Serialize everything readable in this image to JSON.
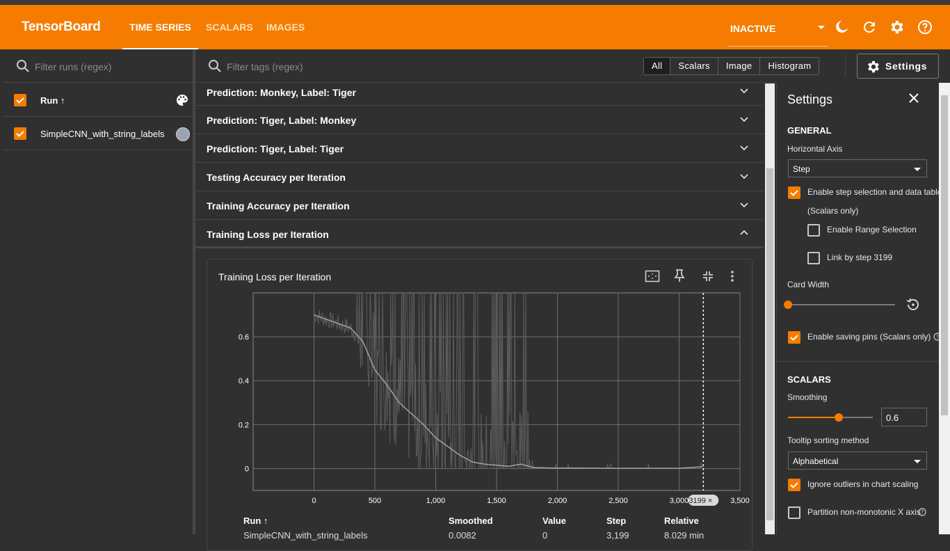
{
  "app": {
    "title": "TensorBoard"
  },
  "nav": {
    "tabs": [
      "TIME SERIES",
      "SCALARS",
      "IMAGES"
    ],
    "status": "INACTIVE"
  },
  "left": {
    "filter_placeholder": "Filter runs (regex)",
    "header_label": "Run ↑",
    "run_name": "SimpleCNN_with_string_labels"
  },
  "main": {
    "filter_placeholder": "Filter tags (regex)",
    "type_filters": [
      "All",
      "Scalars",
      "Image",
      "Histogram"
    ],
    "settings_label": "Settings",
    "groups": [
      "Prediction: Monkey, Label: Tiger",
      "Prediction: Tiger, Label: Monkey",
      "Prediction: Tiger, Label: Tiger",
      "Testing Accuracy per Iteration",
      "Training Accuracy per Iteration",
      "Training Loss per Iteration"
    ],
    "card_title": "Training Loss per Iteration",
    "step_marker": "3199",
    "table_headers": [
      "Run ↑",
      "Smoothed",
      "Value",
      "Step",
      "Relative"
    ],
    "table_row": [
      "SimpleCNN_with_string_labels",
      "0.0082",
      "0",
      "3,199",
      "8.029 min"
    ]
  },
  "chart_data": {
    "type": "line",
    "title": "Training Loss per Iteration",
    "xlabel": "Step",
    "ylabel": "",
    "xlim": [
      -500,
      3500
    ],
    "ylim": [
      -0.1,
      0.8
    ],
    "x_ticks": [
      "0",
      "500",
      "1,000",
      "1,500",
      "2,000",
      "2,500",
      "3,000",
      "3,500"
    ],
    "y_ticks": [
      "0",
      "0.2",
      "0.4",
      "0.6"
    ],
    "series": [
      {
        "name": "SimpleCNN_with_string_labels",
        "x": [
          0,
          100,
          200,
          300,
          400,
          500,
          600,
          700,
          800,
          900,
          1000,
          1100,
          1200,
          1300,
          1400,
          1500,
          1600,
          1700,
          1800,
          1900,
          2000,
          2200,
          2500,
          2800,
          3000,
          3199
        ],
        "values": [
          0.7,
          0.68,
          0.66,
          0.64,
          0.58,
          0.45,
          0.38,
          0.3,
          0.25,
          0.2,
          0.14,
          0.1,
          0.06,
          0.03,
          0.02,
          0.015,
          0.01,
          0.02,
          0.005,
          0.003,
          0.002,
          0.002,
          0.001,
          0.001,
          0.001,
          0.0082
        ]
      }
    ],
    "selected_step": 3199
  },
  "settings": {
    "title": "Settings",
    "general": "GENERAL",
    "horizontal_axis_label": "Horizontal Axis",
    "horizontal_axis_value": "Step",
    "step_selection": "Enable step selection and data table",
    "scalars_only": "(Scalars only)",
    "range_selection": "Enable Range Selection",
    "link_by_step": "Link by step 3199",
    "card_width": "Card Width",
    "saving_pins": "Enable saving pins (Scalars only)",
    "scalars": "SCALARS",
    "smoothing_label": "Smoothing",
    "smoothing_value": "0.6",
    "smoothing_fraction": 0.6,
    "tooltip_label": "Tooltip sorting method",
    "tooltip_value": "Alphabetical",
    "ignore_outliers": "Ignore outliers in chart scaling",
    "partition": "Partition non-monotonic X axis"
  },
  "colors": {
    "accent": "#f57c00",
    "background": "#303030",
    "line": "#9aa4b1"
  }
}
